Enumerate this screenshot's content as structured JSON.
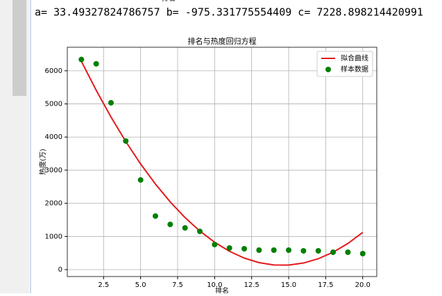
{
  "output": {
    "cut_label": "排名",
    "text": "a= 33.49327824786757 b= -975.331775554409 c= 7228.898214420991"
  },
  "chart_data": {
    "type": "scatter",
    "title": "排名与热度回归方程",
    "xlabel": "排名",
    "ylabel": "热度(万)",
    "x": [
      1,
      2,
      3,
      4,
      5,
      6,
      7,
      8,
      9,
      10,
      11,
      12,
      13,
      14,
      15,
      16,
      17,
      18,
      19,
      20
    ],
    "series": [
      {
        "name": "拟合曲线",
        "type": "line",
        "color": "#e31a1c",
        "values": [
          6287.1,
          5412.2,
          4604.3,
          3863.5,
          3189.6,
          2582.7,
          2042.8,
          1569.8,
          1163.9,
          824.9,
          552.9,
          348.0,
          210.0,
          138.9,
          134.9,
          197.9,
          327.8,
          524.8,
          788.7,
          1119.6
        ]
      },
      {
        "name": "样本数据",
        "type": "scatter",
        "color": "#008000",
        "values": [
          6340,
          6210,
          5035,
          3880,
          2706,
          1615,
          1364,
          1259,
          1154,
          755,
          650,
          629,
          587,
          587,
          587,
          566,
          566,
          524,
          524,
          482
        ]
      }
    ],
    "xlim": [
      0.05,
      20.95
    ],
    "ylim": [
      -210,
      6710
    ],
    "xticks": [
      2.5,
      {
        "value": 5,
        "label": "5.0"
      },
      7.5,
      {
        "value": 10,
        "label": "10.0"
      },
      12.5,
      {
        "value": 15,
        "label": "15.0"
      },
      17.5,
      {
        "value": 20,
        "label": "20.0"
      }
    ],
    "yticks": [
      0,
      1000,
      2000,
      3000,
      4000,
      5000,
      6000
    ],
    "grid": true,
    "legend": "upper right"
  }
}
